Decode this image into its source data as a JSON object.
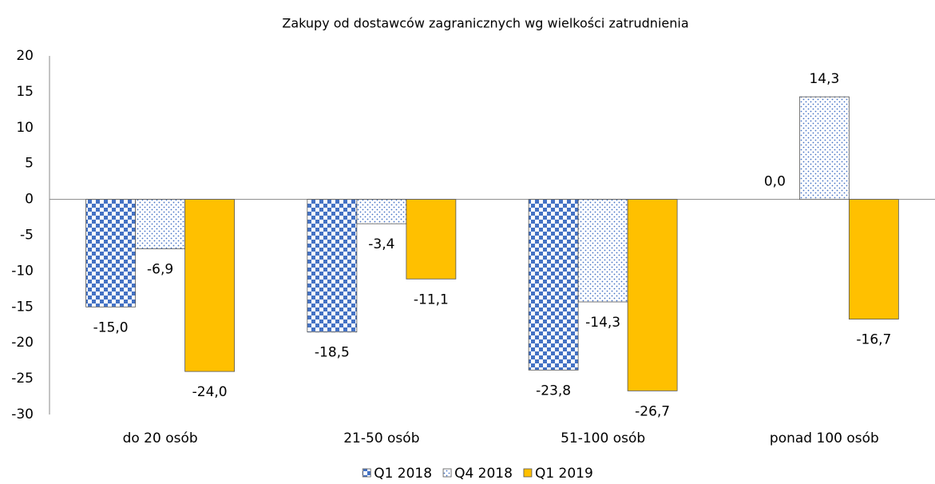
{
  "chart_data": {
    "type": "bar",
    "title": "Zakupy od dostawców zagranicznych wg wielkości zatrudnienia",
    "categories": [
      "do 20 osób",
      "21-50 osób",
      "51-100 osób",
      "ponad 100 osób"
    ],
    "series": [
      {
        "name": "Q1 2018",
        "color": "#4472c4",
        "pattern": "checker",
        "values": [
          -15.0,
          -18.5,
          -23.8,
          0.0
        ],
        "value_labels": [
          "-15,0",
          "-18,5",
          "-23,8",
          "0,0"
        ]
      },
      {
        "name": "Q4 2018",
        "color": "#4472c4",
        "pattern": "dots",
        "values": [
          -6.9,
          -3.4,
          -14.3,
          14.3
        ],
        "value_labels": [
          "-6,9",
          "-3,4",
          "-14,3",
          "14,3"
        ]
      },
      {
        "name": "Q1 2019",
        "color": "#ffc000",
        "pattern": "solid",
        "values": [
          -24.0,
          -11.1,
          -26.7,
          -16.7
        ],
        "value_labels": [
          "-24,0",
          "-11,1",
          "-26,7",
          "-16,7"
        ]
      }
    ],
    "ylim": [
      -30,
      20
    ],
    "yticks": [
      -30,
      -25,
      -20,
      -15,
      -10,
      -5,
      0,
      5,
      10,
      15,
      20
    ],
    "grid": false,
    "legend": "bottom"
  }
}
